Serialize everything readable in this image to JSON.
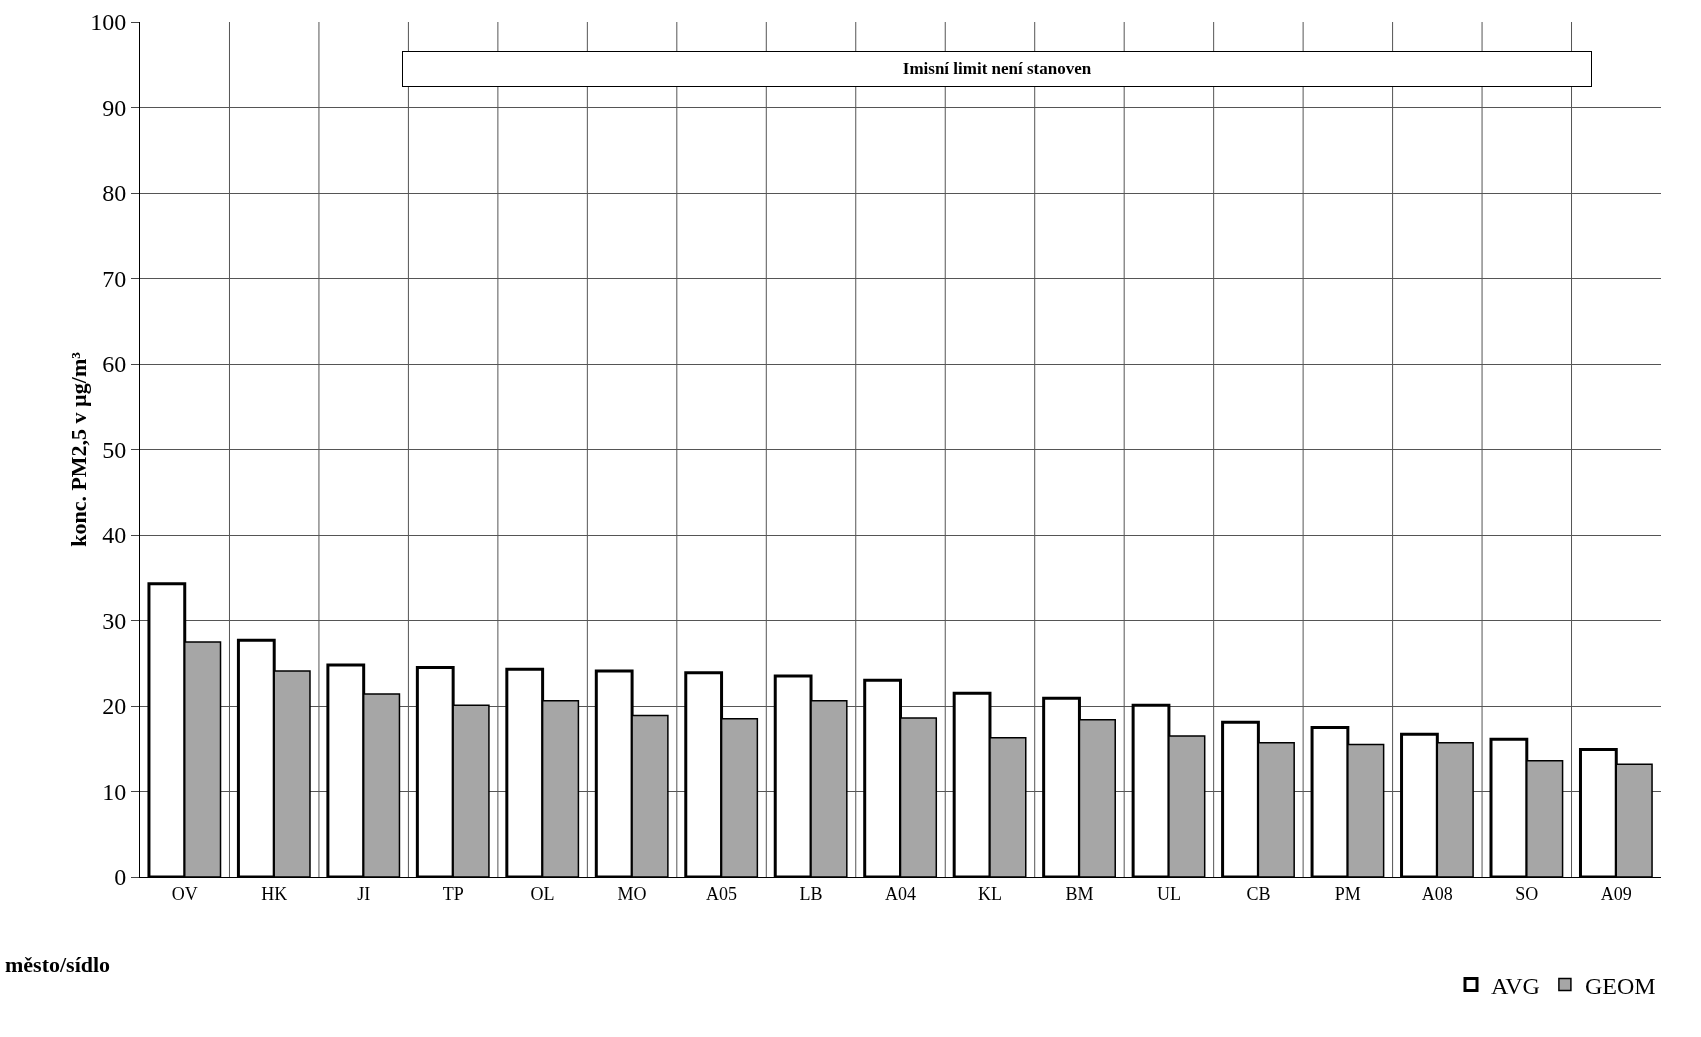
{
  "chart_data": {
    "type": "bar",
    "ylabel": "konc. PM2,5 v µg/m³",
    "xlabel": "město/sídlo",
    "annotations": [
      "Imisní limit není stanoven"
    ],
    "categories": [
      "OV",
      "HK",
      "JI",
      "TP",
      "OL",
      "MO",
      "A05",
      "LB",
      "A04",
      "KL",
      "BM",
      "UL",
      "CB",
      "PM",
      "A08",
      "SO",
      "A09"
    ],
    "series": [
      {
        "name": "AVG",
        "color": "#ffffff",
        "values": [
          34.3,
          27.7,
          24.8,
          24.5,
          24.3,
          24.1,
          23.9,
          23.5,
          23.0,
          21.5,
          20.9,
          20.1,
          18.1,
          17.5,
          16.7,
          16.1,
          14.9
        ]
      },
      {
        "name": "GEOM",
        "color": "#a6a6a6",
        "values": [
          27.5,
          24.1,
          21.4,
          20.1,
          20.6,
          18.9,
          18.5,
          20.6,
          18.6,
          16.3,
          18.4,
          16.5,
          15.7,
          15.5,
          15.7,
          13.6,
          13.2
        ]
      }
    ],
    "ylim": [
      0,
      100
    ],
    "yticks": [
      0,
      10,
      20,
      30,
      40,
      50,
      60,
      70,
      80,
      90,
      100
    ],
    "grid": true,
    "legend": "bottom right"
  }
}
